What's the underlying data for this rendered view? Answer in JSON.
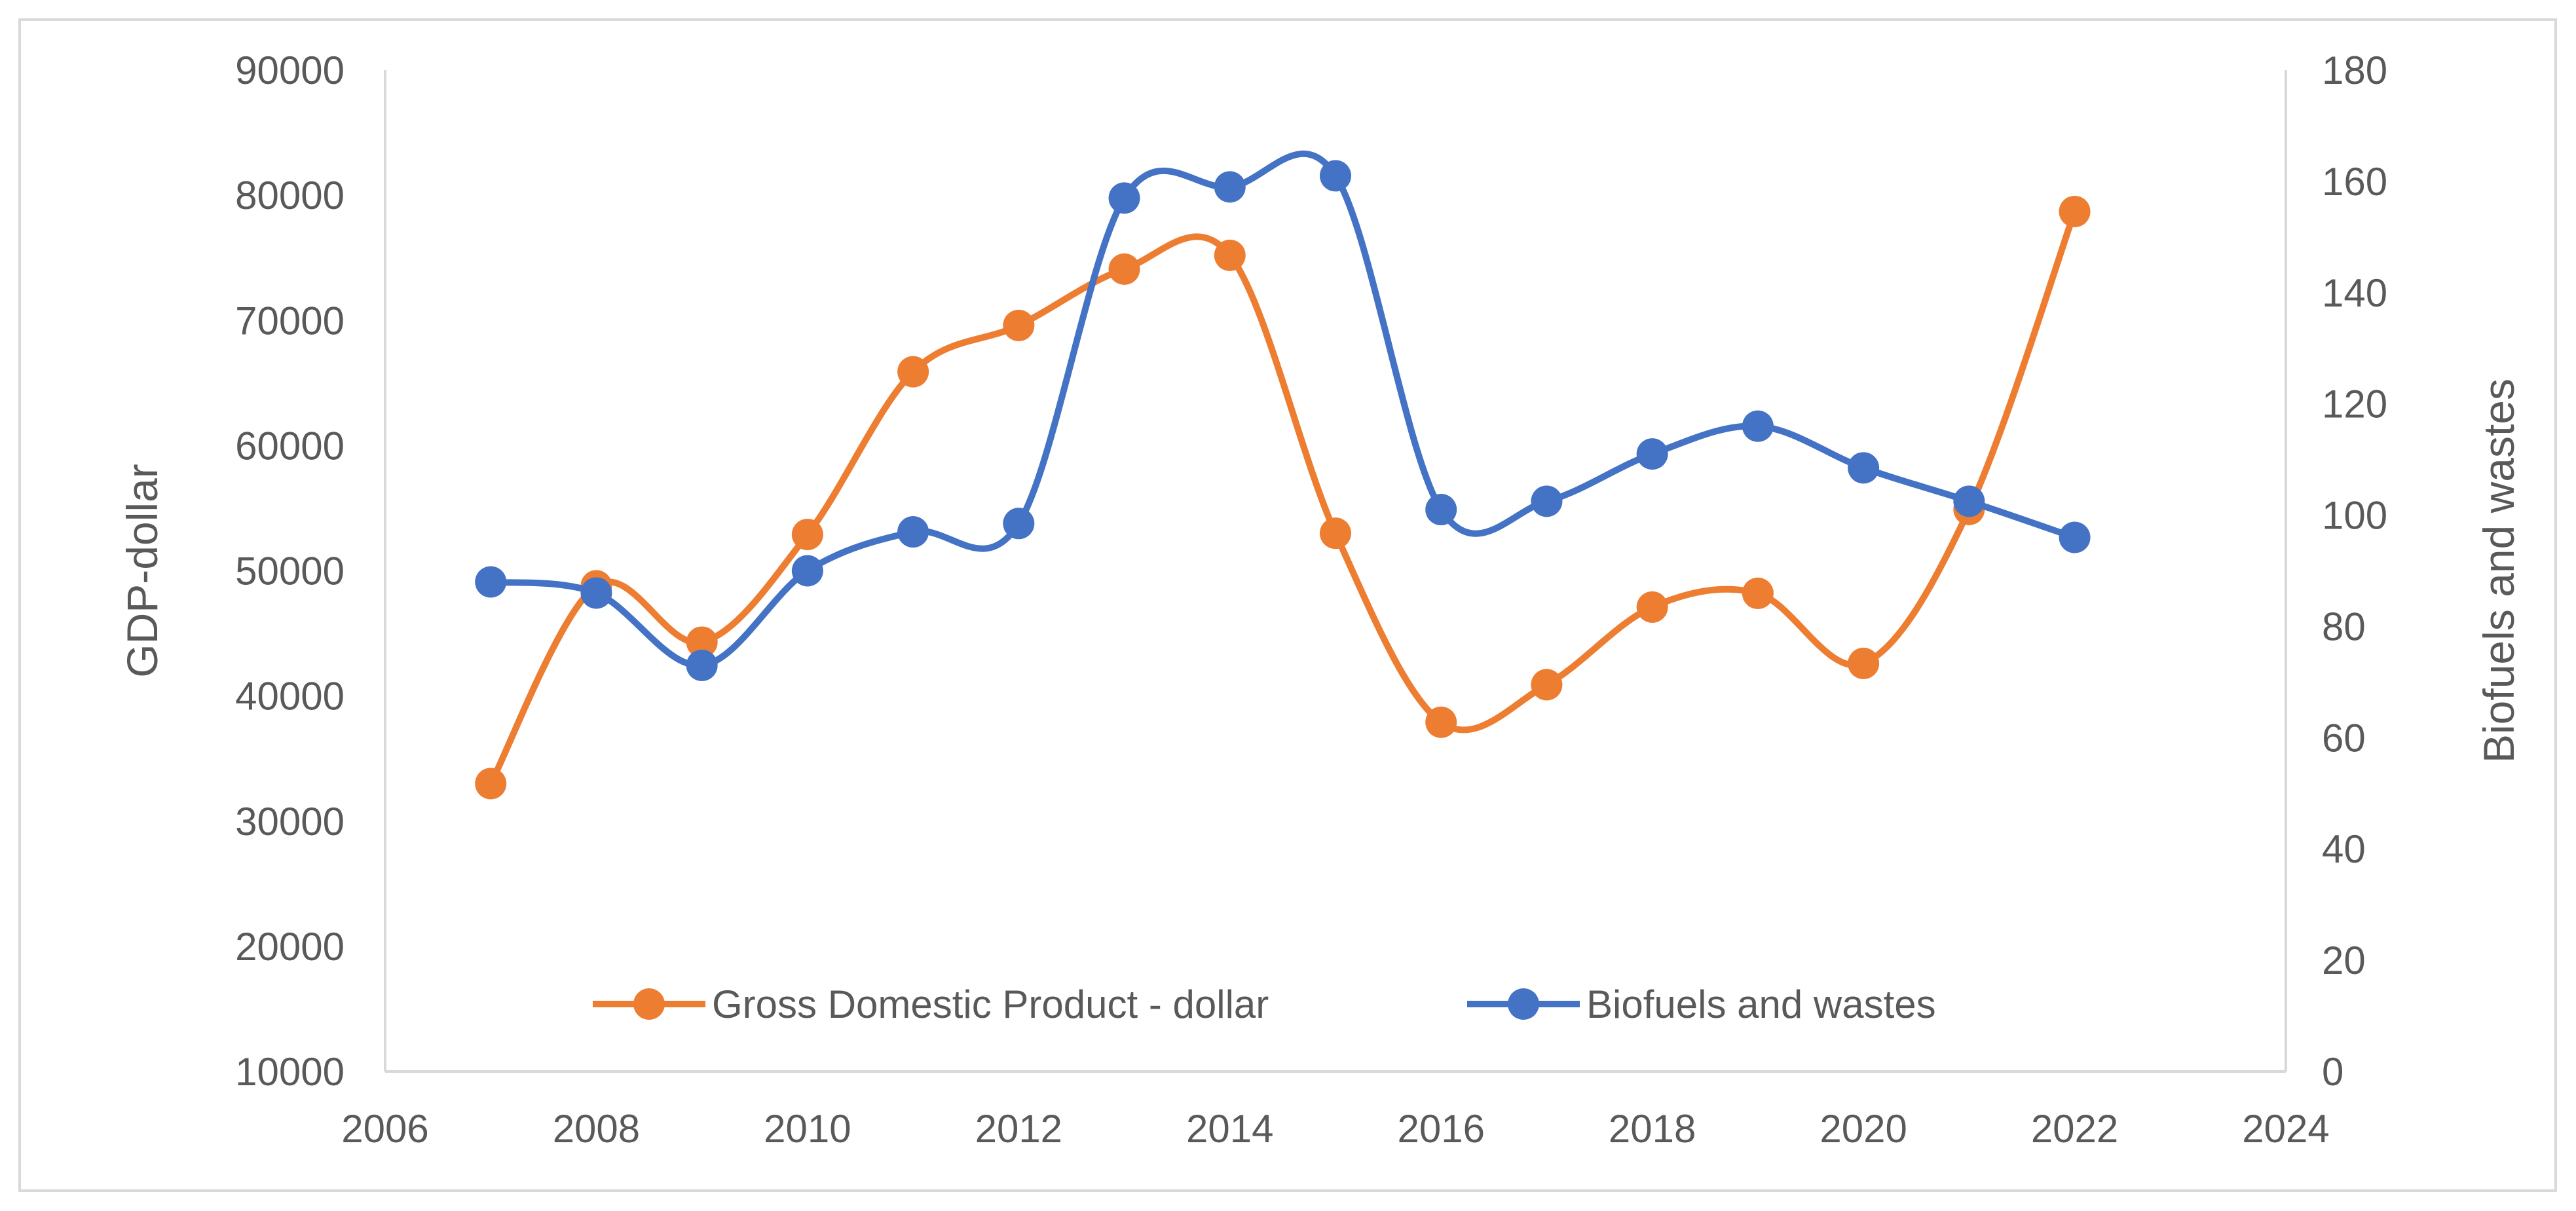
{
  "chart_data": {
    "type": "line",
    "title": "",
    "xlabel": "",
    "ylabel": "GDP-dollar",
    "y2label": "Biofuels and wastes",
    "xlim": [
      2006,
      2024
    ],
    "xticks": [
      2006,
      2008,
      2010,
      2012,
      2014,
      2016,
      2018,
      2020,
      2022,
      2024
    ],
    "ylim": [
      10000,
      90000
    ],
    "yticks": [
      10000,
      20000,
      30000,
      40000,
      50000,
      60000,
      70000,
      80000,
      90000
    ],
    "y2lim": [
      0,
      180
    ],
    "y2ticks": [
      0,
      20,
      40,
      60,
      80,
      100,
      120,
      140,
      160,
      180
    ],
    "grid": false,
    "legend_position": "bottom-center",
    "series": [
      {
        "name": "Gross Domestic Product - dollar",
        "axis": "left",
        "color": "#ED7D31",
        "x": [
          2007,
          2008,
          2009,
          2010,
          2011,
          2012,
          2013,
          2014,
          2015,
          2016,
          2017,
          2018,
          2019,
          2020,
          2021,
          2022
        ],
        "values": [
          33000,
          48800,
          44300,
          52900,
          65900,
          69600,
          74100,
          75200,
          53000,
          37900,
          40900,
          47100,
          48200,
          42600,
          54900,
          78700
        ]
      },
      {
        "name": "Biofuels and wastes",
        "axis": "right",
        "color": "#4472C4",
        "x": [
          2007,
          2008,
          2009,
          2010,
          2011,
          2012,
          2013,
          2014,
          2015,
          2016,
          2017,
          2018,
          2019,
          2020,
          2021,
          2022
        ],
        "values": [
          88,
          86,
          73,
          90,
          97,
          98.5,
          157,
          159,
          161,
          101,
          102.5,
          111,
          116,
          108.5,
          102.5,
          96
        ]
      }
    ]
  }
}
